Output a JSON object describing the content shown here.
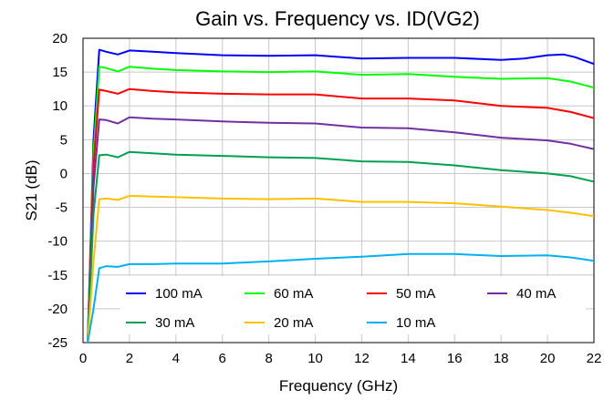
{
  "chart_data": {
    "type": "line",
    "title": "Gain vs. Frequency vs. ID(VG2)",
    "xlabel": "Frequency (GHz)",
    "ylabel": "S21 (dB)",
    "xlim": [
      0,
      22
    ],
    "ylim": [
      -25,
      20
    ],
    "xticks": [
      0,
      2,
      4,
      6,
      8,
      10,
      12,
      14,
      16,
      18,
      20,
      22
    ],
    "yticks": [
      -25,
      -20,
      -15,
      -10,
      -5,
      0,
      5,
      10,
      15,
      20
    ],
    "grid": true,
    "legend_position": "bottom",
    "series": [
      {
        "name": "100 mA",
        "color": "#0000ff",
        "x": [
          0.2,
          0.45,
          0.7,
          1.0,
          1.5,
          2.0,
          3,
          4,
          6,
          8,
          10,
          12,
          14,
          16,
          18,
          19,
          20,
          20.7,
          21.2,
          22
        ],
        "y": [
          -25,
          5,
          18.3,
          18.0,
          17.6,
          18.2,
          18.0,
          17.8,
          17.5,
          17.4,
          17.5,
          17.0,
          17.1,
          17.1,
          16.8,
          17.0,
          17.5,
          17.6,
          17.2,
          16.2
        ]
      },
      {
        "name": "60 mA",
        "color": "#00ff00",
        "x": [
          0.2,
          0.45,
          0.7,
          1.0,
          1.5,
          2.0,
          3,
          4,
          6,
          8,
          10,
          12,
          14,
          16,
          18,
          20,
          21,
          22
        ],
        "y": [
          -25,
          3,
          15.8,
          15.6,
          15.1,
          15.8,
          15.5,
          15.3,
          15.1,
          15.0,
          15.1,
          14.6,
          14.7,
          14.3,
          14.0,
          14.1,
          13.6,
          12.7
        ]
      },
      {
        "name": "50 mA",
        "color": "#ff0000",
        "x": [
          0.2,
          0.45,
          0.7,
          1.0,
          1.5,
          2.0,
          3,
          4,
          6,
          8,
          10,
          12,
          14,
          16,
          18,
          20,
          21,
          22
        ],
        "y": [
          -25,
          1,
          12.4,
          12.2,
          11.8,
          12.5,
          12.2,
          12.0,
          11.8,
          11.7,
          11.7,
          11.1,
          11.1,
          10.8,
          10.0,
          9.7,
          9.1,
          8.2
        ]
      },
      {
        "name": "40 mA",
        "color": "#7030a0",
        "x": [
          0.2,
          0.45,
          0.7,
          1.0,
          1.5,
          2.0,
          3,
          4,
          6,
          8,
          10,
          12,
          14,
          16,
          18,
          20,
          21,
          22
        ],
        "y": [
          -25,
          -2,
          8.0,
          7.9,
          7.4,
          8.3,
          8.1,
          8.0,
          7.7,
          7.5,
          7.4,
          6.8,
          6.7,
          6.1,
          5.3,
          4.9,
          4.4,
          3.6
        ]
      },
      {
        "name": "30 mA",
        "color": "#00a050",
        "x": [
          0.2,
          0.45,
          0.7,
          1.0,
          1.5,
          2.0,
          3,
          4,
          6,
          8,
          10,
          12,
          14,
          16,
          18,
          20,
          21,
          22
        ],
        "y": [
          -25,
          -6,
          2.7,
          2.8,
          2.4,
          3.2,
          3.0,
          2.8,
          2.6,
          2.4,
          2.3,
          1.8,
          1.7,
          1.2,
          0.5,
          0.0,
          -0.4,
          -1.2
        ]
      },
      {
        "name": "20 mA",
        "color": "#ffc000",
        "x": [
          0.2,
          0.45,
          0.7,
          1.0,
          1.5,
          2.0,
          3,
          4,
          6,
          8,
          10,
          12,
          14,
          16,
          18,
          20,
          21,
          22
        ],
        "y": [
          -25,
          -13,
          -3.8,
          -3.7,
          -3.9,
          -3.3,
          -3.4,
          -3.5,
          -3.7,
          -3.8,
          -3.7,
          -4.2,
          -4.2,
          -4.4,
          -4.9,
          -5.4,
          -5.8,
          -6.3
        ]
      },
      {
        "name": "10 mA",
        "color": "#00b0f0",
        "x": [
          0.2,
          0.45,
          0.7,
          1.0,
          1.5,
          2.0,
          3,
          4,
          6,
          8,
          10,
          12,
          14,
          16,
          18,
          20,
          21,
          22
        ],
        "y": [
          -25,
          -20,
          -14.0,
          -13.7,
          -13.8,
          -13.4,
          -13.4,
          -13.3,
          -13.3,
          -13.0,
          -12.6,
          -12.3,
          -11.9,
          -11.9,
          -12.2,
          -12.1,
          -12.4,
          -12.9
        ]
      }
    ]
  }
}
